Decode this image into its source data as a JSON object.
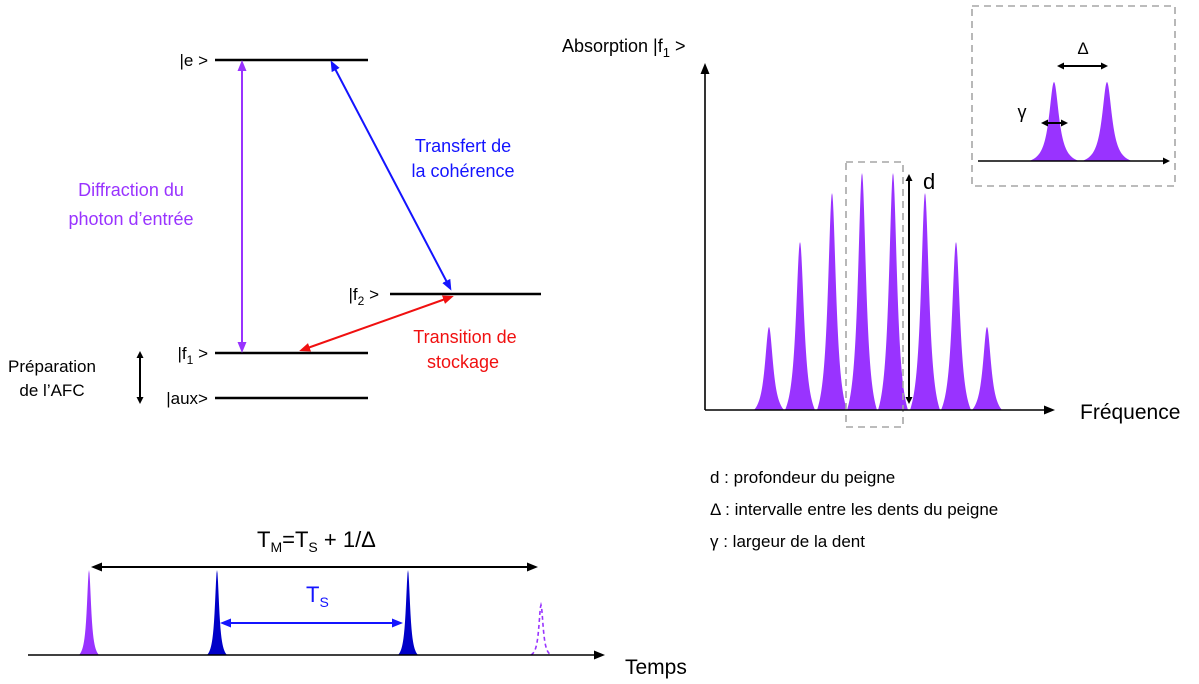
{
  "energy_levels": {
    "e": "|e >",
    "f2": {
      "prefix": "|f",
      "sub": "2",
      "suffix": " >"
    },
    "f1": {
      "prefix": "|f",
      "sub": "1",
      "suffix": " >"
    },
    "aux": "|aux>"
  },
  "annotations": {
    "preparation": [
      "Préparation",
      "de l’AFC"
    ],
    "diffraction": [
      "Diffraction du",
      "photon d’entrée"
    ],
    "coherence_transfer": [
      "Transfert de",
      "la cohérence"
    ],
    "storage_transition": [
      "Transition de",
      "stockage"
    ]
  },
  "comb_plot": {
    "y_label": {
      "prefix": "Absorption |f",
      "sub": "1",
      "suffix": " >"
    },
    "x_label": "Fréquence",
    "depth_symbol": "d",
    "inset_spacing_symbol": "Δ",
    "inset_width_symbol": "γ"
  },
  "legend": [
    "d : profondeur du peigne",
    "Δ : intervalle entre les dents du peigne",
    "γ : largeur de la dent"
  ],
  "timeline": {
    "period": {
      "a": "T",
      "a_sub": "M",
      "b": "=T",
      "b_sub": "S",
      "c": " + 1/Δ"
    },
    "storage": {
      "main": "T",
      "sub": "S"
    },
    "x_label": "Temps"
  },
  "colors": {
    "purple": "#9933FF",
    "blue": "#1414FF",
    "pulse_blue": "#0000C8",
    "red": "#F01010",
    "gray_dashed": "#A6A6A6"
  }
}
